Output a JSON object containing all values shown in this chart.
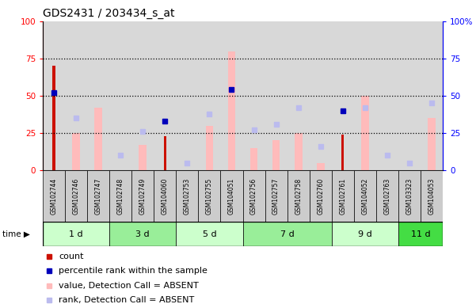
{
  "title": "GDS2431 / 203434_s_at",
  "samples": [
    "GSM102744",
    "GSM102746",
    "GSM102747",
    "GSM102748",
    "GSM102749",
    "GSM104060",
    "GSM102753",
    "GSM102755",
    "GSM104051",
    "GSM102756",
    "GSM102757",
    "GSM102758",
    "GSM102760",
    "GSM102761",
    "GSM104052",
    "GSM102763",
    "GSM103323",
    "GSM104053"
  ],
  "time_groups": [
    {
      "label": "1 d",
      "start": 0,
      "end": 2,
      "color": "#ccffcc"
    },
    {
      "label": "3 d",
      "start": 3,
      "end": 5,
      "color": "#99ee99"
    },
    {
      "label": "5 d",
      "start": 6,
      "end": 8,
      "color": "#ccffcc"
    },
    {
      "label": "7 d",
      "start": 9,
      "end": 12,
      "color": "#99ee99"
    },
    {
      "label": "9 d",
      "start": 13,
      "end": 15,
      "color": "#ccffcc"
    },
    {
      "label": "11 d",
      "start": 16,
      "end": 17,
      "color": "#44dd44"
    }
  ],
  "count_values": [
    70,
    0,
    0,
    0,
    0,
    23,
    0,
    0,
    0,
    0,
    0,
    0,
    0,
    24,
    0,
    0,
    0,
    0
  ],
  "percentile_rank_values": [
    52,
    0,
    0,
    0,
    0,
    33,
    0,
    0,
    54,
    0,
    0,
    0,
    0,
    40,
    0,
    0,
    0,
    0
  ],
  "value_absent": [
    0,
    25,
    42,
    0,
    17,
    0,
    0,
    30,
    80,
    15,
    20,
    25,
    5,
    0,
    50,
    0,
    0,
    35
  ],
  "rank_absent": [
    0,
    35,
    0,
    10,
    26,
    0,
    5,
    38,
    0,
    27,
    31,
    42,
    16,
    0,
    42,
    10,
    5,
    45
  ],
  "ylim": [
    0,
    100
  ],
  "dotted_lines": [
    25,
    50,
    75
  ],
  "bar_color_count": "#cc1100",
  "bar_color_percentile": "#0000bb",
  "bar_color_value_absent": "#ffbbbb",
  "bar_color_rank_absent": "#bbbbee",
  "bg_plot": "#ffffff",
  "bg_sample": "#d8d8d8",
  "legend_items": [
    {
      "color": "#cc1100",
      "label": "count",
      "marker": "s"
    },
    {
      "color": "#0000bb",
      "label": "percentile rank within the sample",
      "marker": "s"
    },
    {
      "color": "#ffbbbb",
      "label": "value, Detection Call = ABSENT",
      "marker": "s"
    },
    {
      "color": "#bbbbee",
      "label": "rank, Detection Call = ABSENT",
      "marker": "s"
    }
  ]
}
